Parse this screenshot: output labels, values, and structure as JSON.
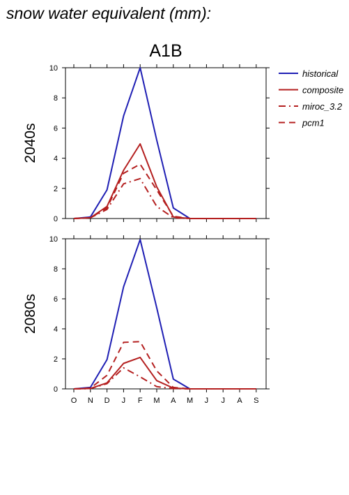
{
  "page": {
    "title": "snow water equivalent (mm):"
  },
  "colors": {
    "historical": "#1f1fb4",
    "scenario": "#b41f1f",
    "axis": "#000000"
  },
  "legend": [
    {
      "name": "historical",
      "color": "#1f1fb4",
      "dash": "solid"
    },
    {
      "name": "composite",
      "color": "#b41f1f",
      "dash": "solid"
    },
    {
      "name": "miroc_3.2",
      "color": "#b41f1f",
      "dash": "dashdot"
    },
    {
      "name": "pcm1",
      "color": "#b41f1f",
      "dash": "dash"
    }
  ],
  "chart_data": [
    {
      "type": "line",
      "title": "A1B",
      "row_label": "2040s",
      "categories": [
        "O",
        "N",
        "D",
        "J",
        "F",
        "M",
        "A",
        "M",
        "J",
        "J",
        "A",
        "S"
      ],
      "ylim": [
        0,
        10
      ],
      "yticks": [
        0,
        2,
        4,
        6,
        8,
        10
      ],
      "series": [
        {
          "name": "historical",
          "values": [
            0,
            0.1,
            1.9,
            6.8,
            10.0,
            5.2,
            0.7,
            0,
            0,
            0,
            0,
            0
          ]
        },
        {
          "name": "composite",
          "values": [
            0,
            0.05,
            0.8,
            3.2,
            4.95,
            2.1,
            0.1,
            0,
            0,
            0,
            0,
            0
          ]
        },
        {
          "name": "miroc_3.2",
          "values": [
            0,
            0.05,
            0.6,
            2.3,
            2.65,
            0.8,
            0.05,
            0,
            0,
            0,
            0,
            0
          ]
        },
        {
          "name": "pcm1",
          "values": [
            0,
            0.05,
            0.7,
            3.0,
            3.6,
            1.9,
            0.15,
            0,
            0,
            0,
            0,
            0
          ]
        }
      ]
    },
    {
      "type": "line",
      "title": "",
      "row_label": "2080s",
      "categories": [
        "O",
        "N",
        "D",
        "J",
        "F",
        "M",
        "A",
        "M",
        "J",
        "J",
        "A",
        "S"
      ],
      "xticklabels": [
        "O",
        "N",
        "D",
        "J",
        "F",
        "M",
        "A",
        "M",
        "J",
        "J",
        "A",
        "S"
      ],
      "ylim": [
        0,
        10
      ],
      "yticks": [
        0,
        2,
        4,
        6,
        8,
        10
      ],
      "series": [
        {
          "name": "historical",
          "values": [
            0,
            0.1,
            1.95,
            6.8,
            9.95,
            5.4,
            0.65,
            0,
            0,
            0,
            0,
            0
          ]
        },
        {
          "name": "composite",
          "values": [
            0,
            0.03,
            0.4,
            1.7,
            2.1,
            0.55,
            0.05,
            0,
            0,
            0,
            0,
            0
          ]
        },
        {
          "name": "miroc_3.2",
          "values": [
            0,
            0.02,
            0.35,
            1.4,
            0.8,
            0.15,
            0.02,
            0,
            0,
            0,
            0,
            0
          ]
        },
        {
          "name": "pcm1",
          "values": [
            0,
            0.05,
            0.9,
            3.1,
            3.15,
            1.2,
            0.1,
            0,
            0,
            0,
            0,
            0
          ]
        }
      ]
    }
  ]
}
